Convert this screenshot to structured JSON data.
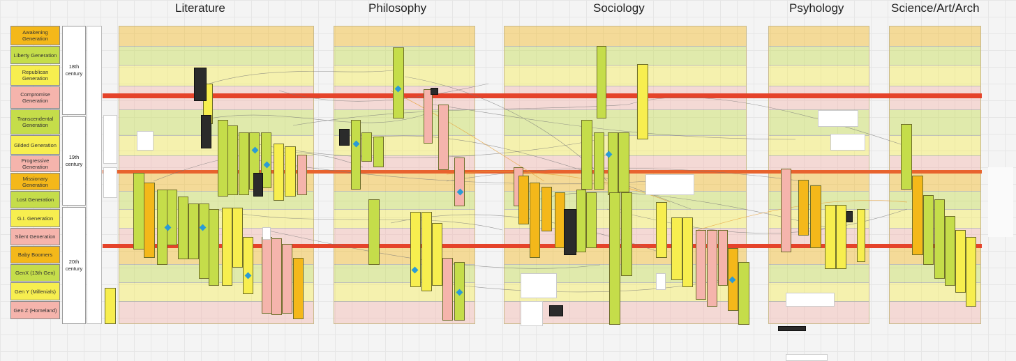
{
  "headers": [
    "Literature",
    "Philosophy",
    "Sociology",
    "Psyhology",
    "Science/Art/Arch"
  ],
  "generations": [
    {
      "label": "Awakening Generation",
      "color": "#f4b81a"
    },
    {
      "label": "Liberty Generation",
      "color": "#c5dd4a"
    },
    {
      "label": "Republican Generation",
      "color": "#f7ee4f"
    },
    {
      "label": "Compromise Generation",
      "color": "#f5b4ac"
    },
    {
      "label": "Transcendental Generation",
      "color": "#c5dd4a"
    },
    {
      "label": "Gilded Generation",
      "color": "#f7ee4f"
    },
    {
      "label": "Progressive Generation",
      "color": "#f5b4ac"
    },
    {
      "label": "Missionary Generation",
      "color": "#f4b81a"
    },
    {
      "label": "Lost Generation",
      "color": "#c5dd4a"
    },
    {
      "label": "G.I. Generation",
      "color": "#f7ee4f"
    },
    {
      "label": "Silent Generation",
      "color": "#f5b4ac"
    },
    {
      "label": "Baby Boomers",
      "color": "#f4b81a"
    },
    {
      "label": "GenX (13th Gen)",
      "color": "#c5dd4a"
    },
    {
      "label": "Gen Y (Millenials)",
      "color": "#f7ee4f"
    },
    {
      "label": "Gen Z (Homeland)",
      "color": "#f5b4ac"
    }
  ],
  "centuries": [
    "18th century",
    "19th century",
    "20th century"
  ],
  "colors": {
    "orange": "#f4b81a",
    "green": "#c5dd4a",
    "yellow": "#f7ee4f",
    "pink": "#f5b4ac",
    "red_line": "#e5432a",
    "diamond": "#2a9bd6"
  }
}
